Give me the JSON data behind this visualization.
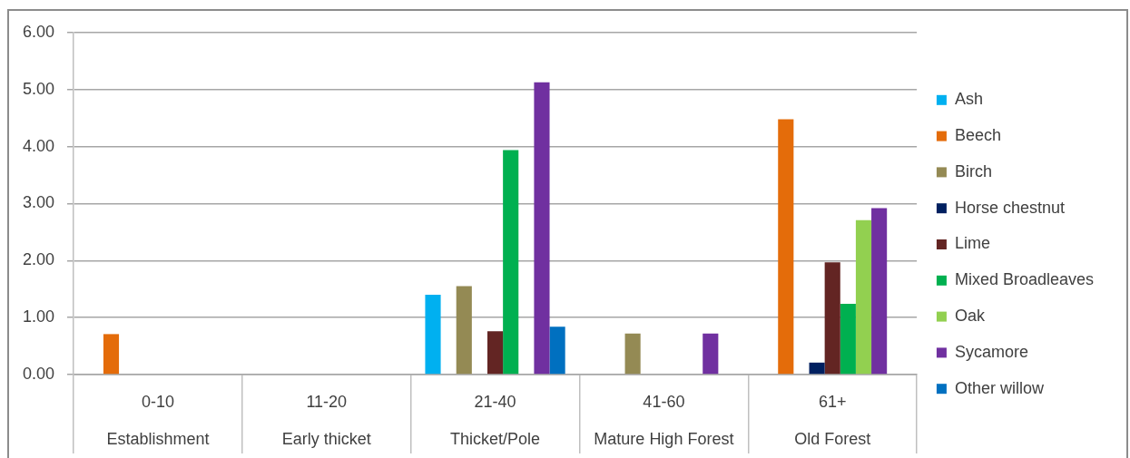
{
  "chart_data": {
    "type": "bar",
    "categories": [
      "0-10\nEstablishment",
      "11-20\nEarly thicket",
      "21-40\nThicket/Pole",
      "41-60\nMature High Forest",
      "61+\nOld Forest"
    ],
    "series": [
      {
        "name": "Ash",
        "color": "#00b0f0",
        "values": [
          null,
          null,
          1.4,
          null,
          null
        ]
      },
      {
        "name": "Beech",
        "color": "#e46c0a",
        "values": [
          0.71,
          null,
          null,
          null,
          4.48
        ]
      },
      {
        "name": "Birch",
        "color": "#948a54",
        "values": [
          null,
          null,
          1.55,
          0.72,
          null
        ]
      },
      {
        "name": "Horse chestnut",
        "color": "#002060",
        "values": [
          null,
          null,
          null,
          null,
          0.21
        ]
      },
      {
        "name": "Lime",
        "color": "#632523",
        "values": [
          null,
          null,
          0.76,
          null,
          1.97
        ]
      },
      {
        "name": "Mixed Broadleaves",
        "color": "#00b050",
        "values": [
          null,
          null,
          3.94,
          null,
          1.24
        ]
      },
      {
        "name": "Oak",
        "color": "#92d050",
        "values": [
          null,
          null,
          null,
          null,
          2.71
        ]
      },
      {
        "name": "Sycamore",
        "color": "#7030a0",
        "values": [
          null,
          null,
          5.13,
          0.72,
          2.92
        ]
      },
      {
        "name": "Other willow",
        "color": "#0070c0",
        "values": [
          null,
          null,
          0.84,
          null,
          null
        ]
      }
    ],
    "ylim": [
      0,
      6
    ],
    "yticks": [
      {
        "value": 0,
        "label": "0.00"
      },
      {
        "value": 1,
        "label": "1.00"
      },
      {
        "value": 2,
        "label": "2.00"
      },
      {
        "value": 3,
        "label": "3.00"
      },
      {
        "value": 4,
        "label": "4.00"
      },
      {
        "value": 5,
        "label": "5.00"
      },
      {
        "value": 6,
        "label": "6.00"
      }
    ],
    "grid": "y",
    "legend": "right"
  }
}
